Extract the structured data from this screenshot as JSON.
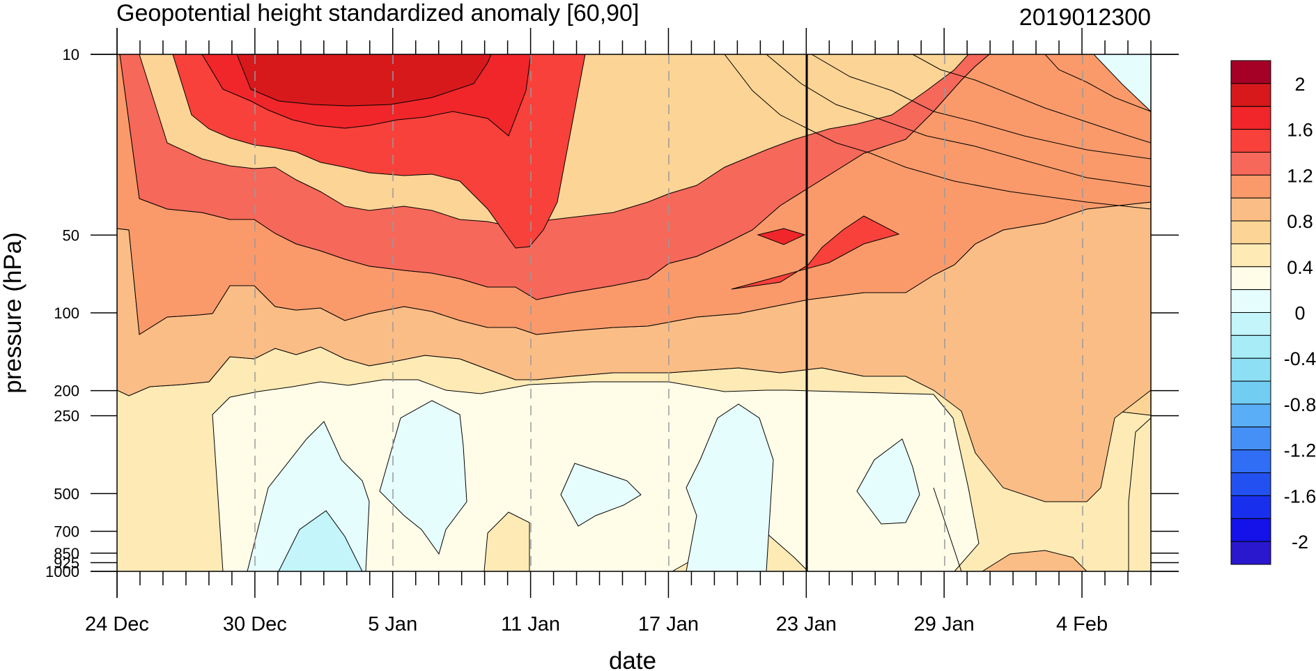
{
  "chart_data": {
    "type": "heatmap",
    "subtype": "filled-contour (time-pressure)",
    "title": "Geopotential height standardized anomaly [60,90]",
    "date_label": "2019012300",
    "xlabel": "date",
    "ylabel": "pressure (hPa)",
    "x_range": [
      "24 Dec",
      "6 Feb"
    ],
    "x_ticks": [
      "24 Dec",
      "30 Dec",
      "5 Jan",
      "11 Jan",
      "17 Jan",
      "23 Jan",
      "29 Jan",
      "4 Feb"
    ],
    "y_scale": "log (reversed)",
    "y_range": [
      1000,
      10
    ],
    "y_ticks": [
      10,
      50,
      100,
      200,
      250,
      500,
      700,
      850,
      925,
      1000
    ],
    "y_tick_labels": [
      "10",
      "50",
      "100",
      "200",
      "250",
      "500",
      "700",
      "850",
      "925",
      "1000"
    ],
    "marker_date": "23 Jan",
    "vertical_dashed_gridlines": true,
    "colorbar": {
      "position": "right",
      "labels": [
        "2",
        "1.6",
        "1.2",
        "0.8",
        "0.4",
        "0",
        "-0.4",
        "-0.8",
        "-1.2",
        "-1.6",
        "-2"
      ],
      "levels": [
        2.2,
        2.0,
        1.8,
        1.6,
        1.4,
        1.2,
        1.0,
        0.8,
        0.6,
        0.4,
        0.2,
        0.0,
        -0.2,
        -0.4,
        -0.6,
        -0.8,
        -1.0,
        -1.2,
        -1.4,
        -1.6,
        -1.8,
        -2.0,
        -2.2
      ],
      "colors": [
        "#a50026",
        "#d7191c",
        "#f0262a",
        "#f8413b",
        "#f6685a",
        "#fa9a6a",
        "#fbbd86",
        "#fcd495",
        "#fdeab5",
        "#fffde8",
        "#e6fdfd",
        "#c3f5fb",
        "#a7ecf7",
        "#8ddff4",
        "#72cdf3",
        "#5aaef7",
        "#4590f7",
        "#2f6ef5",
        "#2351f1",
        "#1830ee",
        "#1412e8",
        "#2a18cf"
      ]
    },
    "contour_regions": [
      {
        "level": 1.8,
        "desc": "stratospheric core, 10-30 hPa, ~27 Dec to ~10 Jan"
      },
      {
        "level": 1.6,
        "desc": "10-65 hPa, ~26 Dec to ~13 Jan"
      },
      {
        "level": 1.2,
        "desc": "up to ~100 hPa, Dec 25 to ~Jan 26"
      },
      {
        "level": 1.0,
        "desc": "broad band 10-150 hPa, Dec 24 to ~Feb 4"
      },
      {
        "level": 0.0,
        "desc": "troposphere 250-1000 hPa, Dec 28 to Jan 30"
      },
      {
        "level": -0.2,
        "desc": "isolated negative pockets near 300-900 hPa"
      },
      {
        "level": -0.4,
        "desc": "near surface, ~1-3 Jan"
      }
    ]
  }
}
